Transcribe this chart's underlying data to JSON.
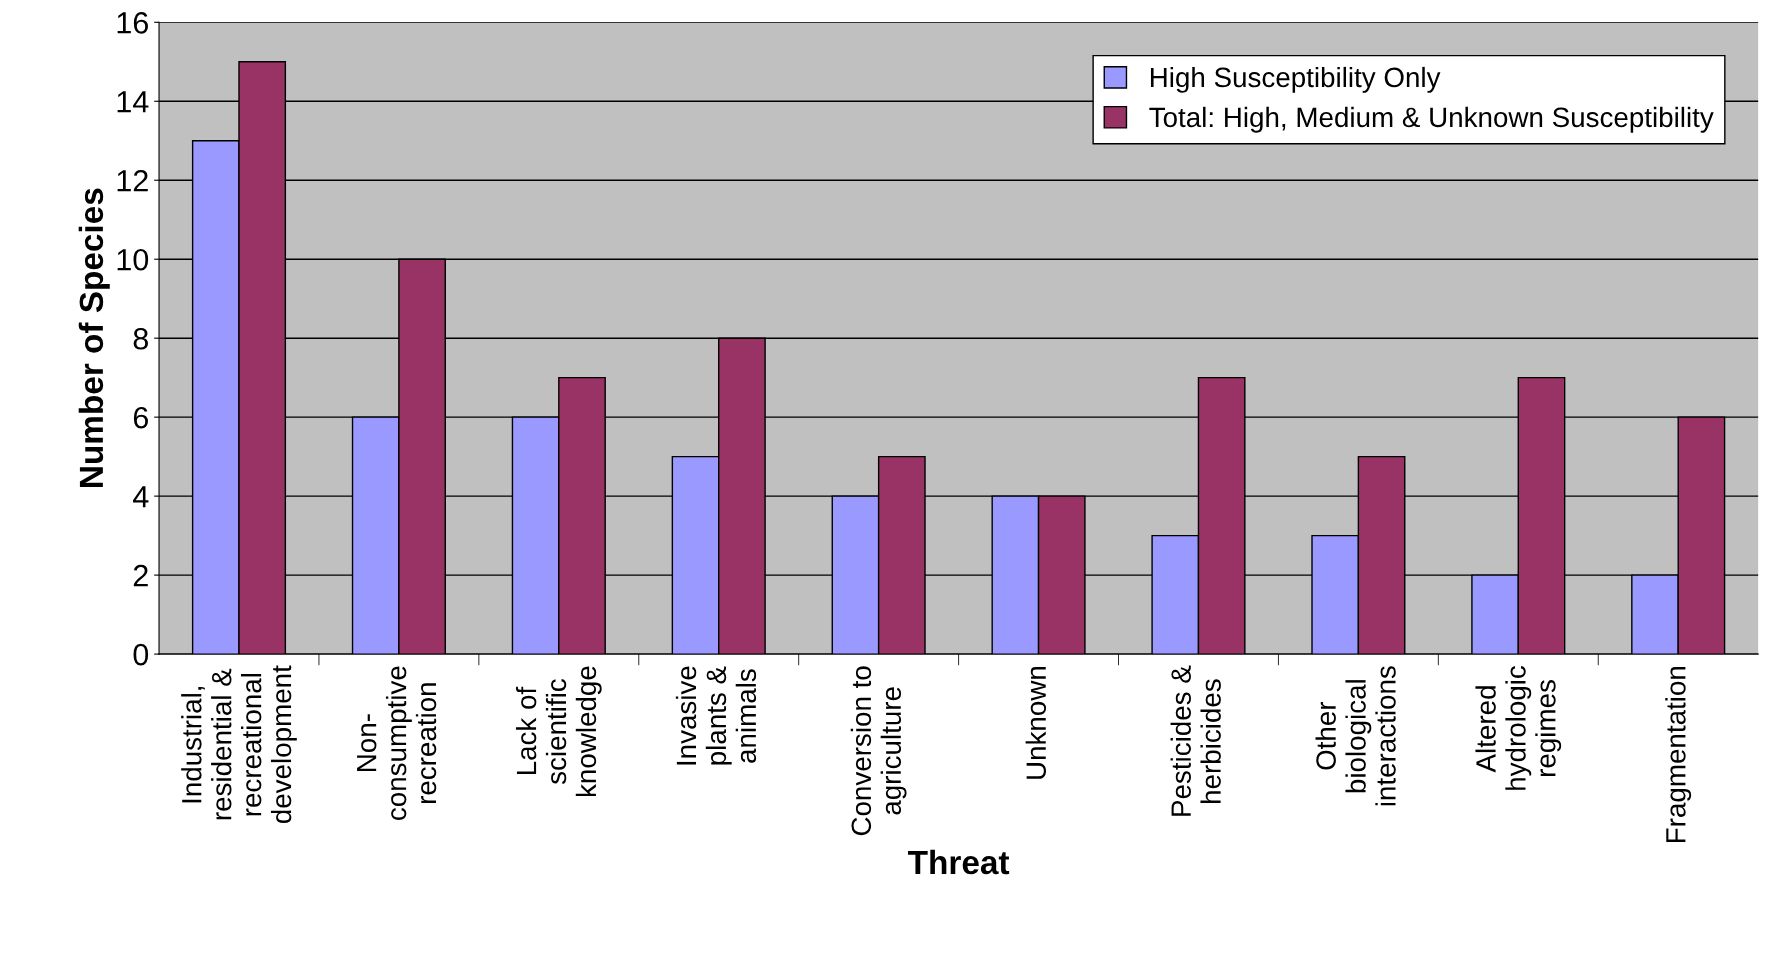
{
  "chart_data": {
    "type": "bar",
    "xlabel": "Threat",
    "ylabel": "Number of Species",
    "categories": [
      "Industrial,\nresidential &\nrecreational\ndevelopment",
      "Non-\nconsumptive\nrecreation",
      "Lack of\nscientific\nknowledge",
      "Invasive\nplants &\nanimals",
      "Conversion to\nagriculture",
      "Unknown",
      "Pesticides &\nherbicides",
      "Other\nbiological\ninteractions",
      "Altered\nhydrologic\nregimes",
      "Fragmentation"
    ],
    "series": [
      {
        "name": "High Susceptibility Only",
        "color": "#9999ff",
        "values": [
          13,
          6,
          6,
          5,
          4,
          4,
          3,
          3,
          2,
          2
        ]
      },
      {
        "name": "Total: High, Medium & Unknown Susceptibility",
        "color": "#993366",
        "values": [
          15,
          10,
          7,
          8,
          5,
          4,
          7,
          5,
          7,
          6
        ]
      }
    ],
    "ylim": [
      0,
      16
    ],
    "yticks": [
      0,
      2,
      4,
      6,
      8,
      10,
      12,
      14,
      16
    ],
    "grid": "y",
    "legend": "top right"
  }
}
